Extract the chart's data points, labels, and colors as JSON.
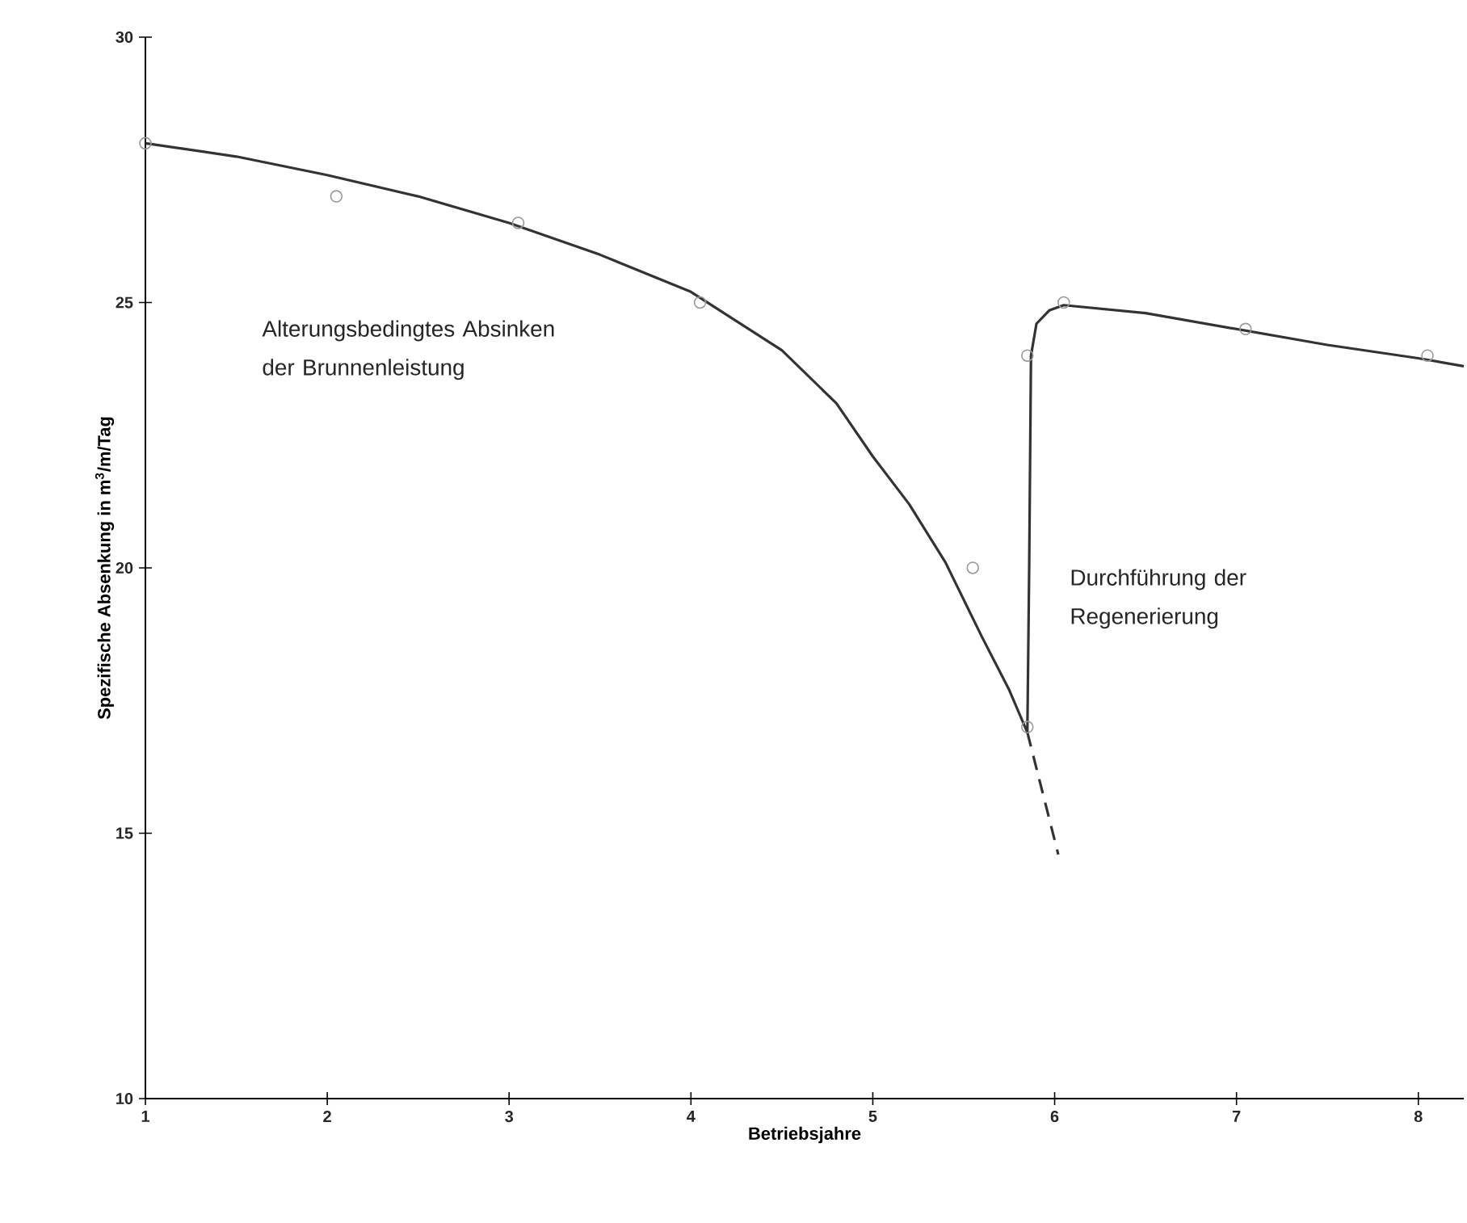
{
  "chart_data": {
    "type": "line",
    "xlabel": "Betriebsjahre",
    "ylabel": "Spezifische Absenkung in m$^{3}$/m/Tag",
    "xlim": [
      1,
      8.25
    ],
    "xticks": [
      1,
      2,
      3,
      4,
      5,
      6,
      7,
      8
    ],
    "ylim": [
      10,
      30
    ],
    "yticks": [
      10,
      15,
      20,
      25,
      30
    ],
    "grid": false,
    "series": [
      {
        "color": "#333333",
        "line_style": "solid",
        "marker": "none",
        "x": [
          1,
          1.5,
          2,
          2.5,
          3,
          3.5,
          4,
          4.5,
          4.8,
          5.0,
          5.2,
          5.4,
          5.6,
          5.75,
          5.85,
          5.86,
          5.87,
          5.9,
          5.97,
          6.05,
          6.5,
          7,
          7.5,
          8,
          8.25
        ],
        "values": [
          28,
          27.75,
          27.4,
          27.0,
          26.5,
          25.9,
          25.2,
          24.1,
          23.1,
          22.1,
          21.2,
          20.1,
          18.7,
          17.7,
          16.9,
          20,
          24.0,
          24.6,
          24.85,
          24.95,
          24.8,
          24.5,
          24.2,
          23.95,
          23.8
        ]
      },
      {
        "color": "#333333",
        "line_style": "dashed",
        "marker": "none",
        "x": [
          5.85,
          6.02
        ],
        "values": [
          16.9,
          14.6
        ]
      },
      {
        "type": "scatter",
        "color": "#999999",
        "marker": "circle",
        "x": [
          1,
          2.05,
          3.05,
          4.05,
          5.55,
          5.85,
          5.85,
          6.05,
          7.05,
          8.05
        ],
        "values": [
          28,
          27,
          26.5,
          25,
          20,
          17,
          24,
          25,
          24.5,
          24
        ]
      }
    ],
    "annotations": [
      "Alterungsbedingtes Absinken der Brunnenleistung",
      "Durchführung der Regenerierung"
    ]
  }
}
